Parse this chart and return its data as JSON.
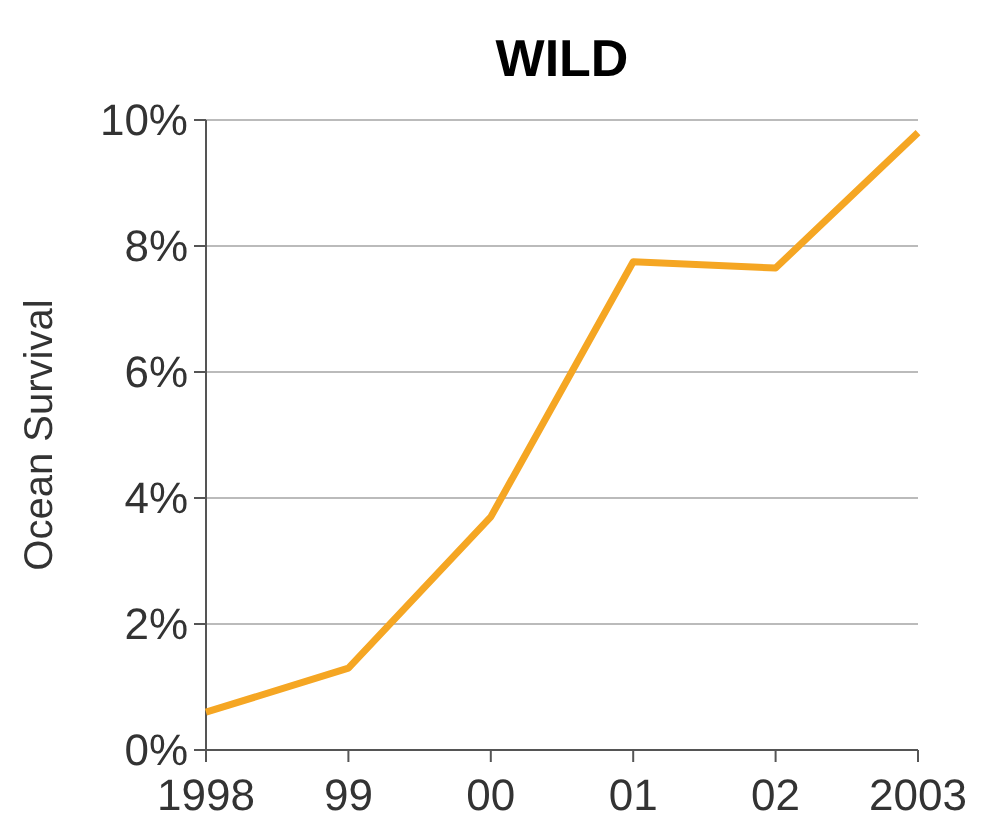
{
  "chart_data": {
    "type": "line",
    "title": "WILD",
    "ylabel": "Ocean Survival",
    "categories": [
      "1998",
      "99",
      "00",
      "01",
      "02",
      "2003"
    ],
    "series": [
      {
        "color": "#f5a623",
        "values": [
          0.6,
          1.3,
          3.7,
          7.75,
          7.65,
          9.8
        ]
      }
    ],
    "ylim": [
      0,
      10
    ],
    "yticks": [
      {
        "value": 0,
        "label": "0%"
      },
      {
        "value": 2,
        "label": "2%"
      },
      {
        "value": 4,
        "label": "4%"
      },
      {
        "value": 6,
        "label": "6%"
      },
      {
        "value": 8,
        "label": "8%"
      },
      {
        "value": 10,
        "label": "10%"
      }
    ],
    "grid": "y",
    "marker": "none",
    "line_style": "solid"
  }
}
